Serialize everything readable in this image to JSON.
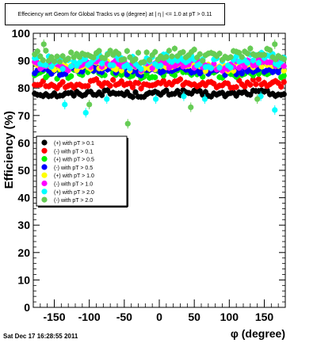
{
  "title": "Effeciency wrt Geom for Global Tracks vs φ (degree) at | η | <= 1.0 at pT > 0.11",
  "timestamp": "Sat Dec 17 16:28:55 2011",
  "chart_data": {
    "type": "scatter",
    "xlabel": "φ (degree)",
    "ylabel": "Efficiency (%)",
    "xlim": [
      -180,
      180
    ],
    "ylim": [
      0,
      100
    ],
    "xticks": [
      -150,
      -100,
      -50,
      0,
      50,
      100,
      150
    ],
    "yticks": [
      0,
      10,
      20,
      30,
      40,
      50,
      60,
      70,
      80,
      90,
      100
    ],
    "grid": true,
    "legend_position": "middle-left",
    "series": [
      {
        "name": "(+) with pT > 0.1",
        "color": "#000000",
        "mean": 78.0,
        "spread": 1.0,
        "outliers": []
      },
      {
        "name": "(-) with pT > 0.1",
        "color": "#ff0000",
        "mean": 81.5,
        "spread": 1.3,
        "outliers": []
      },
      {
        "name": "(+) with pT > 0.5",
        "color": "#00ee00",
        "mean": 85.5,
        "spread": 1.5,
        "outliers": []
      },
      {
        "name": "(-) with pT > 0.5",
        "color": "#0000ff",
        "mean": 86.5,
        "spread": 1.4,
        "outliers": []
      },
      {
        "name": "(+) with pT > 1.0",
        "color": "#ffff00",
        "mean": 88.0,
        "spread": 1.5,
        "outliers": []
      },
      {
        "name": "(-) with pT > 1.0",
        "color": "#ff00ff",
        "mean": 88.5,
        "spread": 1.6,
        "outliers": []
      },
      {
        "name": "(+) with pT > 2.0",
        "color": "#00ffff",
        "mean": 90.0,
        "spread": 2.2,
        "outliers": [
          [
            -135,
            74
          ],
          [
            -105,
            71
          ],
          [
            -75,
            76
          ],
          [
            -5,
            76
          ],
          [
            35,
            77
          ],
          [
            65,
            76
          ],
          [
            145,
            77
          ],
          [
            165,
            72
          ]
        ]
      },
      {
        "name": "(-) with pT > 2.0",
        "color": "#66cc55",
        "mean": 92.0,
        "spread": 2.0,
        "outliers": [
          [
            -165,
            96
          ],
          [
            -100,
            74
          ],
          [
            -45,
            67
          ],
          [
            45,
            73
          ],
          [
            140,
            76
          ],
          [
            165,
            96
          ]
        ]
      }
    ]
  }
}
